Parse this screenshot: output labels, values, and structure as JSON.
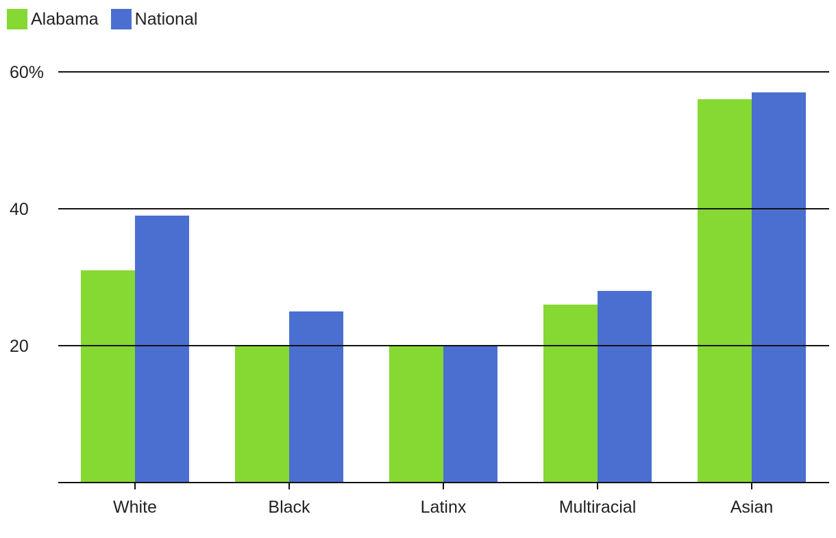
{
  "chart_data": {
    "type": "bar",
    "categories": [
      "White",
      "Black",
      "Latinx",
      "Multiracial",
      "Asian"
    ],
    "series": [
      {
        "name": "Alabama",
        "color": "#86d832",
        "values": [
          31,
          20,
          20,
          26,
          56
        ]
      },
      {
        "name": "National",
        "color": "#4a6fd0",
        "values": [
          39,
          25,
          20,
          28,
          57
        ]
      }
    ],
    "yticks": [
      {
        "value": 20,
        "label": "20"
      },
      {
        "value": 40,
        "label": "40"
      },
      {
        "value": 60,
        "label": "60%"
      }
    ],
    "ylim": [
      0,
      60
    ],
    "grid": true,
    "legend_position": "top-left"
  }
}
